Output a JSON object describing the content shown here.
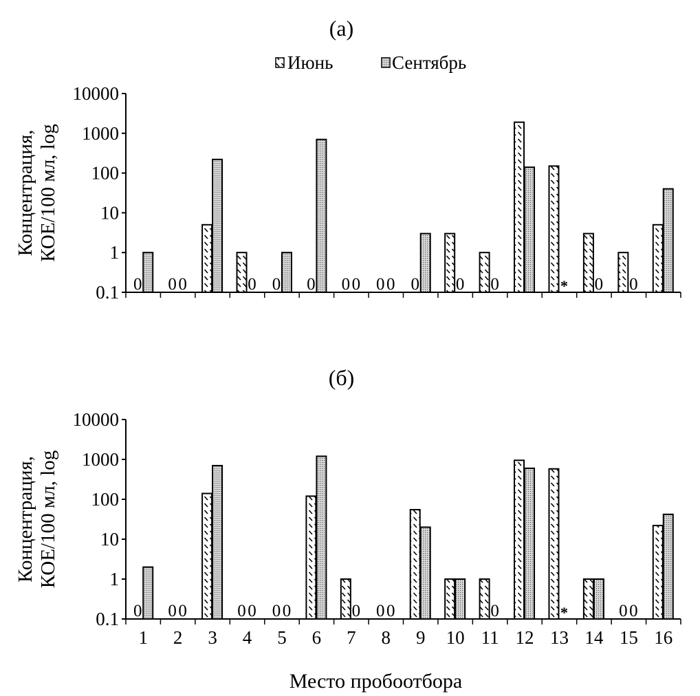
{
  "legend": {
    "items": [
      {
        "name": "Июнь",
        "pattern": "hatched"
      },
      {
        "name": "Сентябрь",
        "pattern": "dotted"
      }
    ],
    "placement": "top-center"
  },
  "chart_data": [
    {
      "type": "bar",
      "title": "(а)",
      "ylabel_line1": "Концентрация,",
      "ylabel_line2": "КОЕ/100 мл, log",
      "xlabel": "",
      "yscale": "log",
      "ylim": [
        0.1,
        10000
      ],
      "yticks": [
        "0.1",
        "1",
        "10",
        "100",
        "1000",
        "10000"
      ],
      "categories": [
        "1",
        "2",
        "3",
        "4",
        "5",
        "6",
        "7",
        "8",
        "9",
        "10",
        "11",
        "12",
        "13",
        "14",
        "15",
        "16"
      ],
      "show_category_labels": false,
      "zero_label": "0",
      "missing_label": "*",
      "series": [
        {
          "name": "Июнь",
          "values": [
            0,
            0,
            5,
            1,
            0,
            0,
            0,
            0,
            0,
            3,
            1,
            1900,
            150,
            3,
            1,
            5
          ]
        },
        {
          "name": "Сентябрь",
          "values": [
            1,
            0,
            220,
            0,
            1,
            700,
            0,
            0,
            3,
            0,
            0,
            140,
            null,
            0,
            0,
            40
          ]
        }
      ]
    },
    {
      "type": "bar",
      "title": "(б)",
      "ylabel_line1": "Концентрация,",
      "ylabel_line2": "КОЕ/100 мл, log",
      "xlabel": "Место пробоотбора",
      "yscale": "log",
      "ylim": [
        0.1,
        10000
      ],
      "yticks": [
        "0.1",
        "1",
        "10",
        "100",
        "1000",
        "10000"
      ],
      "categories": [
        "1",
        "2",
        "3",
        "4",
        "5",
        "6",
        "7",
        "8",
        "9",
        "10",
        "11",
        "12",
        "13",
        "14",
        "15",
        "16"
      ],
      "show_category_labels": true,
      "zero_label": "0",
      "missing_label": "*",
      "series": [
        {
          "name": "Июнь",
          "values": [
            0,
            0,
            140,
            0,
            0,
            120,
            1,
            0,
            55,
            1,
            1,
            950,
            580,
            1,
            0,
            22
          ]
        },
        {
          "name": "Сентябрь",
          "values": [
            2,
            0,
            700,
            0,
            0,
            1200,
            0,
            0,
            20,
            1,
            0,
            600,
            null,
            1,
            0,
            42
          ]
        }
      ]
    }
  ]
}
